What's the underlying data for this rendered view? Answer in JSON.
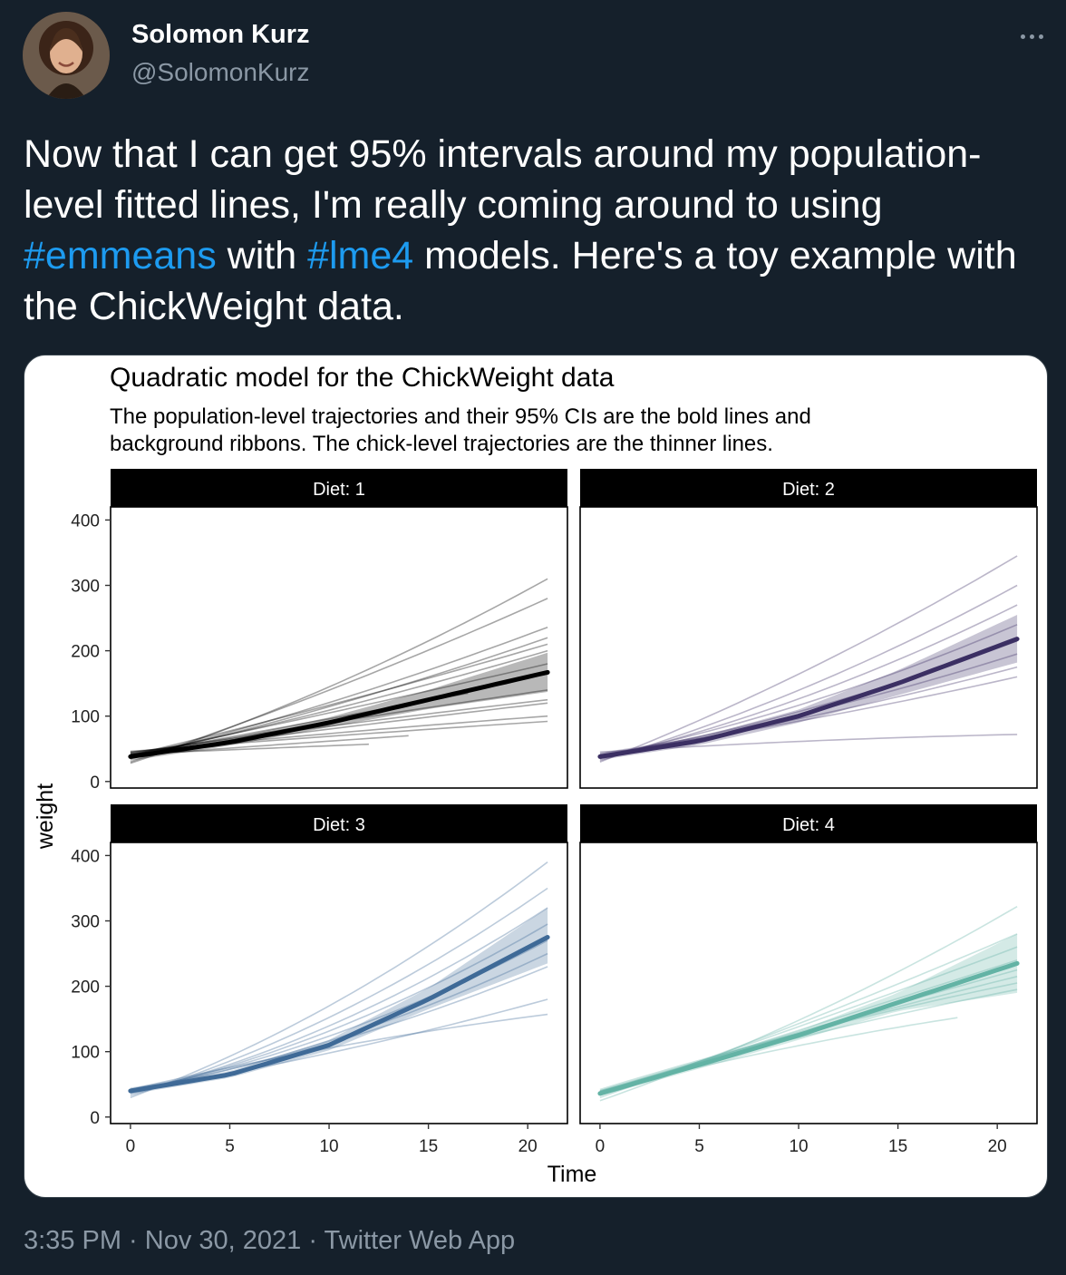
{
  "author": {
    "name": "Solomon Kurz",
    "handle": "@SolomonKurz"
  },
  "tweet": {
    "text_1": "Now that I can get 95% intervals around my population-level fitted lines, I'm really coming around to using ",
    "hashtag_1": "#emmeans",
    "text_2": " with ",
    "hashtag_2": "#lme4",
    "text_3": " models. Here's a toy example with the ChickWeight data."
  },
  "footer": {
    "time": "3:35 PM",
    "sep1": " · ",
    "date": "Nov 30, 2021",
    "sep2": " · ",
    "app": "Twitter Web App"
  },
  "colors": {
    "diet1": "#000000",
    "diet2": "#3b2f63",
    "diet3": "#3f6a97",
    "diet4": "#63b3a5",
    "hashtag": "#1d9bf0"
  },
  "chart_data": {
    "type": "line",
    "title": "Quadratic model for the ChickWeight data",
    "subtitle_line1": "The population-level trajectories and their 95% CIs are the bold lines and",
    "subtitle_line2": "background ribbons. The chick-level trajectories are the thinner lines.",
    "xlabel": "Time",
    "ylabel": "weight",
    "xlim": [
      -1,
      22
    ],
    "ylim": [
      -10,
      420
    ],
    "xticks": [
      0,
      5,
      10,
      15,
      20
    ],
    "yticks": [
      0,
      100,
      200,
      300,
      400
    ],
    "panels": [
      {
        "label": "Diet: 1",
        "color": "#000000",
        "population": {
          "x": [
            0,
            5,
            10,
            15,
            21
          ],
          "y": [
            38,
            60,
            90,
            125,
            167
          ]
        },
        "ci_upper": [
          45,
          66,
          98,
          140,
          197
        ],
        "ci_lower": [
          32,
          55,
          83,
          111,
          137
        ],
        "chicks": [
          {
            "x": [
              0,
              21
            ],
            "y": [
              28,
              310
            ],
            "c": 0.25
          },
          {
            "x": [
              0,
              21
            ],
            "y": [
              30,
              280
            ],
            "c": 0.15
          },
          {
            "x": [
              0,
              21
            ],
            "y": [
              35,
              236
            ],
            "c": 0.2
          },
          {
            "x": [
              0,
              21
            ],
            "y": [
              36,
              220
            ],
            "c": 0.2
          },
          {
            "x": [
              0,
              21
            ],
            "y": [
              40,
              210
            ],
            "c": 0.1
          },
          {
            "x": [
              0,
              21
            ],
            "y": [
              38,
              200
            ],
            "c": 0.15
          },
          {
            "x": [
              0,
              21
            ],
            "y": [
              40,
              180
            ],
            "c": 0.05
          },
          {
            "x": [
              0,
              21
            ],
            "y": [
              42,
              140
            ],
            "c": -0.05
          },
          {
            "x": [
              0,
              21
            ],
            "y": [
              44,
              125
            ],
            "c": -0.1
          },
          {
            "x": [
              0,
              21
            ],
            "y": [
              42,
              120
            ],
            "c": -0.05
          },
          {
            "x": [
              0,
              21
            ],
            "y": [
              45,
              100
            ],
            "c": -0.15
          },
          {
            "x": [
              0,
              21
            ],
            "y": [
              46,
              92
            ],
            "c": -0.1
          },
          {
            "x": [
              0,
              14
            ],
            "y": [
              40,
              70
            ],
            "c": -0.05
          },
          {
            "x": [
              0,
              12
            ],
            "y": [
              42,
              57
            ],
            "c": -0.05
          },
          {
            "x": [
              0,
              17
            ],
            "y": [
              40,
              135
            ],
            "c": 0.0
          }
        ]
      },
      {
        "label": "Diet: 2",
        "color": "#3b2f63",
        "population": {
          "x": [
            0,
            5,
            10,
            15,
            21
          ],
          "y": [
            38,
            62,
            100,
            150,
            218
          ]
        },
        "ci_upper": [
          44,
          68,
          110,
          170,
          255
        ],
        "ci_lower": [
          33,
          56,
          90,
          132,
          182
        ],
        "chicks": [
          {
            "x": [
              0,
              21
            ],
            "y": [
              30,
              345
            ],
            "c": 0.2
          },
          {
            "x": [
              0,
              21
            ],
            "y": [
              32,
              300
            ],
            "c": 0.3
          },
          {
            "x": [
              0,
              21
            ],
            "y": [
              35,
              270
            ],
            "c": 0.35
          },
          {
            "x": [
              0,
              21
            ],
            "y": [
              38,
              240
            ],
            "c": 0.35
          },
          {
            "x": [
              0,
              21
            ],
            "y": [
              38,
              215
            ],
            "c": 0.35
          },
          {
            "x": [
              0,
              21
            ],
            "y": [
              40,
              195
            ],
            "c": 0.3
          },
          {
            "x": [
              0,
              21
            ],
            "y": [
              40,
              175
            ],
            "c": 0.25
          },
          {
            "x": [
              0,
              21
            ],
            "y": [
              42,
              160
            ],
            "c": 0.2
          },
          {
            "x": [
              0,
              21
            ],
            "y": [
              45,
              72
            ],
            "c": -0.5
          }
        ]
      },
      {
        "label": "Diet: 3",
        "color": "#3f6a97",
        "population": {
          "x": [
            0,
            5,
            10,
            15,
            21
          ],
          "y": [
            40,
            65,
            110,
            180,
            275
          ]
        },
        "ci_upper": [
          45,
          70,
          118,
          197,
          320
        ],
        "ci_lower": [
          35,
          60,
          102,
          165,
          235
        ],
        "chicks": [
          {
            "x": [
              0,
              21
            ],
            "y": [
              30,
              390
            ],
            "c": 0.35
          },
          {
            "x": [
              0,
              21
            ],
            "y": [
              33,
              350
            ],
            "c": 0.4
          },
          {
            "x": [
              0,
              21
            ],
            "y": [
              36,
              320
            ],
            "c": 0.45
          },
          {
            "x": [
              0,
              21
            ],
            "y": [
              38,
              295
            ],
            "c": 0.45
          },
          {
            "x": [
              0,
              21
            ],
            "y": [
              40,
              270
            ],
            "c": 0.45
          },
          {
            "x": [
              0,
              21
            ],
            "y": [
              40,
              250
            ],
            "c": 0.45
          },
          {
            "x": [
              0,
              21
            ],
            "y": [
              42,
              230
            ],
            "c": 0.4
          },
          {
            "x": [
              0,
              21
            ],
            "y": [
              40,
              180
            ],
            "c": 0.25
          },
          {
            "x": [
              0,
              21
            ],
            "y": [
              42,
              157
            ],
            "c": -0.3
          }
        ]
      },
      {
        "label": "Diet: 4",
        "color": "#63b3a5",
        "population": {
          "x": [
            0,
            5,
            10,
            15,
            21
          ],
          "y": [
            36,
            80,
            125,
            175,
            235
          ]
        },
        "ci_upper": [
          40,
          86,
          132,
          190,
          280
        ],
        "ci_lower": [
          32,
          74,
          118,
          162,
          190
        ],
        "chicks": [
          {
            "x": [
              0,
              21
            ],
            "y": [
              25,
              322
            ],
            "c": 0.25
          },
          {
            "x": [
              0,
              21
            ],
            "y": [
              30,
              280
            ],
            "c": 0.1
          },
          {
            "x": [
              0,
              21
            ],
            "y": [
              33,
              260
            ],
            "c": 0.05
          },
          {
            "x": [
              0,
              21
            ],
            "y": [
              35,
              240
            ],
            "c": 0.0
          },
          {
            "x": [
              0,
              21
            ],
            "y": [
              38,
              225
            ],
            "c": -0.05
          },
          {
            "x": [
              0,
              21
            ],
            "y": [
              40,
              215
            ],
            "c": -0.1
          },
          {
            "x": [
              0,
              21
            ],
            "y": [
              42,
              205
            ],
            "c": -0.2
          },
          {
            "x": [
              0,
              21
            ],
            "y": [
              40,
              195
            ],
            "c": -0.2
          },
          {
            "x": [
              0,
              18
            ],
            "y": [
              40,
              152
            ],
            "c": -0.25
          }
        ]
      }
    ]
  }
}
